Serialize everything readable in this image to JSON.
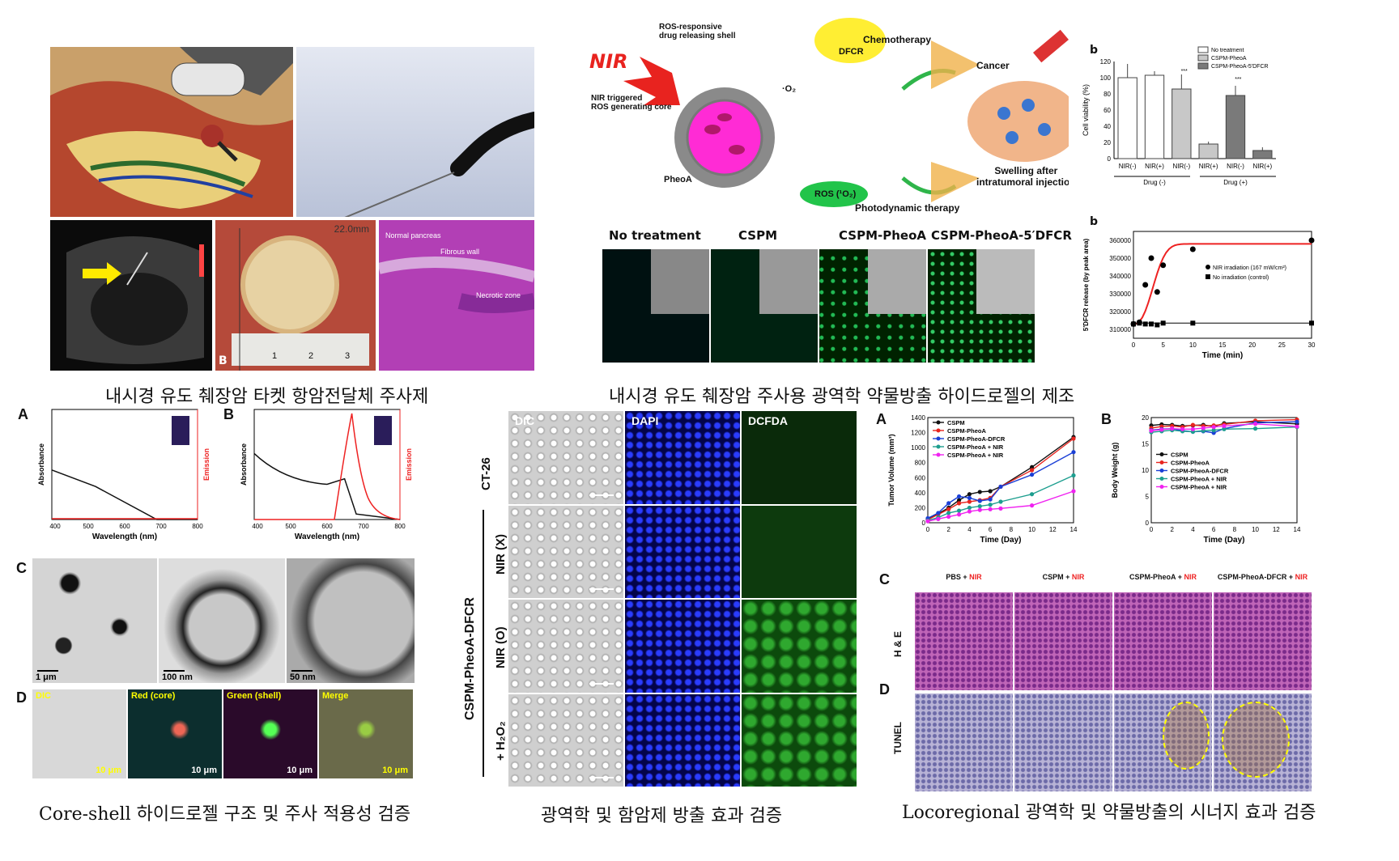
{
  "captions": {
    "top_left": "내시경 유도  췌장암 타켓 항암전달체 주사제",
    "top_right": "내시경 유도 췌장암 주사용 광역학 약물방출 하이드로젤의 제조",
    "bottom_left": "Core-shell 하이드로젤 구조 및 주사 적용성 검증",
    "bottom_mid": "광역학 및 함암제 방출 효과 검증",
    "bottom_right": "Locoregional 광역학 및 약물방출의 시너지 효과 검증"
  },
  "top_left": {
    "scale_label": "22.0mm",
    "panel_b": "B",
    "ruler_numbers": [
      "1",
      "2",
      "3"
    ],
    "histo_labels": [
      "Normal pancreas",
      "Fibrous wall",
      "Necrotic zone"
    ]
  },
  "schematic": {
    "nir": "NIR",
    "ros_shell": "ROS-responsive\ndrug releasing shell",
    "dfcr": "DFCR",
    "core": "NIR triggered\nROS generating core",
    "pheoa": "PheoA",
    "o2": "·O₂",
    "ros_o2": "ROS (¹O₂)",
    "chemo": "Chemotherapy",
    "cancer": "Cancer",
    "swelling": "Swelling after\nintratumoral injection",
    "pdt": "Photodynamic therapy"
  },
  "fluor_row": {
    "labels": [
      "No treatment",
      "CSPM",
      "CSPM-PheoA",
      "CSPM-PheoA-5′DFCR"
    ]
  },
  "bar_chart": {
    "panel": "b",
    "chart_data": {
      "type": "bar",
      "categories": [
        "NIR(-)",
        "NIR(+)",
        "NIR(-)",
        "NIR(+)",
        "NIR(-)",
        "NIR(+)"
      ],
      "values": [
        100,
        103,
        86,
        18,
        78,
        10
      ],
      "errors": [
        17,
        5,
        18,
        3,
        12,
        4
      ],
      "group_labels": [
        "Drug (-)",
        "Drug (+)"
      ],
      "legend": [
        "No treatment",
        "CSPM-PheoA",
        "CSPM-PheoA-5′DFCR"
      ],
      "colors": [
        "#ffffff",
        "#ffffff",
        "#c8c8c8",
        "#c8c8c8",
        "#7a7a7a",
        "#7a7a7a"
      ],
      "ylabel": "Cell viability (%)",
      "ylim": [
        0,
        120
      ],
      "yticks": [
        "0",
        "20",
        "40",
        "60",
        "80",
        "100",
        "120"
      ],
      "significance": [
        "***",
        "***"
      ]
    }
  },
  "release_chart": {
    "panel": "b",
    "chart_data": {
      "type": "scatter",
      "series": [
        {
          "name": "NIR irradiation (167 mW/cm²)",
          "x": [
            0,
            1,
            2,
            3,
            4,
            5,
            10,
            30
          ],
          "y": [
            313000,
            314000,
            335000,
            350000,
            331000,
            346000,
            355000,
            360000
          ]
        },
        {
          "name": "No irradiation (control)",
          "x": [
            0,
            1,
            2,
            3,
            4,
            5,
            10,
            30
          ],
          "y": [
            313000,
            313500,
            313000,
            313000,
            312500,
            313500,
            313500,
            313500
          ]
        }
      ],
      "xlabel": "Time (min)",
      "ylabel": "5′DFCR release (by peak area)",
      "xlim": [
        0,
        30
      ],
      "ylim": [
        305000,
        365000
      ],
      "xticks": [
        "0",
        "5",
        "10",
        "15",
        "20",
        "25",
        "30"
      ],
      "yticks": [
        "310000",
        "320000",
        "330000",
        "340000",
        "350000",
        "360000"
      ]
    }
  },
  "absorbance": {
    "panel_a": "A",
    "panel_b": "B",
    "xlabel": "Wavelength (nm)",
    "ylabel_left": "Absorbance",
    "ylabel_right": "Emission",
    "xticks_a": [
      "400",
      "500",
      "600",
      "700",
      "800"
    ],
    "xticks_b": [
      "400",
      "500",
      "600",
      "700",
      "800"
    ]
  },
  "tem": {
    "panel": "C",
    "scale": [
      "1 μm",
      "100 nm",
      "50 nm"
    ]
  },
  "confocal_small": {
    "panel": "D",
    "labels": [
      "DIC",
      "Red (core)",
      "Green (shell)",
      "Merge"
    ],
    "scale": "10 μm"
  },
  "cell_grid": {
    "col_labels": [
      "DIC",
      "DAPI",
      "DCFDA"
    ],
    "row_labels": [
      "CT-26",
      "NIR (X)",
      "NIR (O)",
      "+ H₂O₂"
    ],
    "group_label": "CSPM-PheoA-DFCR"
  },
  "tumor_chart": {
    "panel": "A",
    "chart_data": {
      "type": "line",
      "x": [
        0,
        1,
        2,
        3,
        4,
        5,
        6,
        7,
        10,
        14
      ],
      "series": [
        {
          "name": "CSPM",
          "values": [
            50,
            120,
            200,
            300,
            380,
            410,
            420,
            480,
            740,
            1140
          ]
        },
        {
          "name": "CSPM-PheoA",
          "values": [
            40,
            110,
            180,
            260,
            280,
            300,
            330,
            480,
            700,
            1120
          ]
        },
        {
          "name": "CSPM-PheoA-DFCR",
          "values": [
            60,
            130,
            260,
            350,
            330,
            290,
            310,
            480,
            640,
            940
          ]
        },
        {
          "name": "CSPM-PheoA + NIR",
          "values": [
            30,
            70,
            130,
            160,
            200,
            220,
            240,
            280,
            380,
            630
          ]
        },
        {
          "name": "CSPM-PheoA + NIR",
          "values": [
            20,
            50,
            80,
            110,
            150,
            170,
            180,
            190,
            230,
            420
          ]
        }
      ],
      "colors": [
        "#111111",
        "#e8251f",
        "#1a3fd6",
        "#1d9e8f",
        "#f022f0"
      ],
      "xlabel": "Time (Day)",
      "ylabel": "Tumor Volume (mm³)",
      "xlim": [
        0,
        14
      ],
      "ylim": [
        0,
        1400
      ],
      "xticks": [
        "0",
        "2",
        "4",
        "6",
        "8",
        "10",
        "12",
        "14"
      ],
      "yticks": [
        "0",
        "200",
        "400",
        "600",
        "800",
        "1000",
        "1200",
        "1400"
      ]
    }
  },
  "weight_chart": {
    "panel": "B",
    "chart_data": {
      "type": "line",
      "x": [
        0,
        1,
        2,
        3,
        4,
        5,
        6,
        7,
        10,
        14
      ],
      "series": [
        {
          "name": "CSPM",
          "values": [
            18.5,
            18.7,
            18.6,
            18.4,
            18.5,
            18.6,
            18.3,
            18.9,
            19.2,
            18.8
          ]
        },
        {
          "name": "CSPM-PheoA",
          "values": [
            18.0,
            18.3,
            18.4,
            18.2,
            18.6,
            18.4,
            18.5,
            18.7,
            19.4,
            19.6
          ]
        },
        {
          "name": "CSPM-PheoA-DFCR",
          "values": [
            17.6,
            17.8,
            17.9,
            17.5,
            17.3,
            17.4,
            17.1,
            17.9,
            19.0,
            19.2
          ]
        },
        {
          "name": "CSPM-PheoA + NIR",
          "values": [
            17.2,
            17.4,
            17.6,
            17.4,
            17.3,
            17.5,
            17.6,
            17.8,
            17.9,
            18.2
          ]
        },
        {
          "name": "CSPM-PheoA + NIR",
          "values": [
            17.5,
            17.7,
            17.9,
            17.8,
            17.8,
            18.0,
            18.2,
            18.4,
            18.8,
            18.3
          ]
        }
      ],
      "colors": [
        "#111111",
        "#e8251f",
        "#1a3fd6",
        "#1d9e8f",
        "#f022f0"
      ],
      "xlabel": "Time (Day)",
      "ylabel": "Body Weight (g)",
      "xlim": [
        0,
        14
      ],
      "ylim": [
        0,
        20
      ],
      "xticks": [
        "0",
        "2",
        "4",
        "6",
        "8",
        "10",
        "12",
        "14"
      ],
      "yticks": [
        "0",
        "5",
        "10",
        "15",
        "20"
      ]
    }
  },
  "histo": {
    "panel_c": "C",
    "panel_d": "D",
    "col_labels": [
      "PBS + ",
      "CSPM + ",
      "CSPM-PheoA + ",
      "CSPM-PheoA-DFCR + "
    ],
    "nir": "NIR",
    "row_labels": [
      "H & E",
      "TUNEL"
    ]
  }
}
